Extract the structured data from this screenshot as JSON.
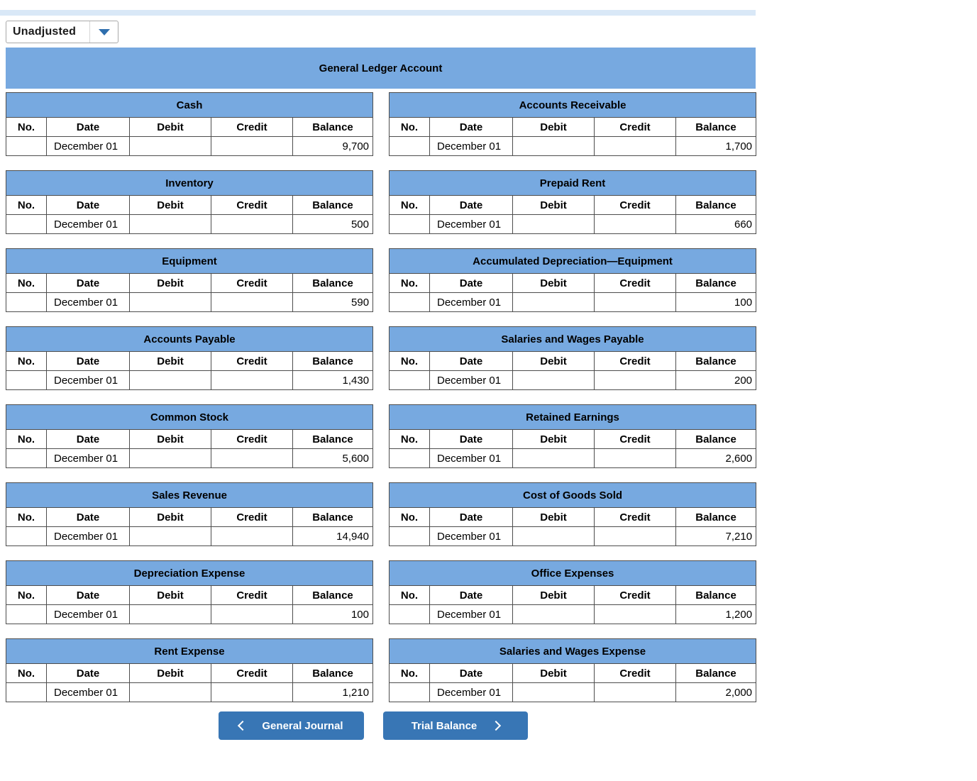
{
  "toolbar": {
    "view_selector": {
      "value": "Unadjusted"
    }
  },
  "banner": {
    "title": "General Ledger Account"
  },
  "table": {
    "columns": [
      "No.",
      "Date",
      "Debit",
      "Credit",
      "Balance"
    ],
    "column_keys": [
      "no",
      "date",
      "debit",
      "credit",
      "balance"
    ]
  },
  "accounts": {
    "left": [
      {
        "name": "Cash",
        "rows": [
          {
            "no": "",
            "date": "December 01",
            "debit": "",
            "credit": "",
            "balance": "9,700"
          }
        ]
      },
      {
        "name": "Inventory",
        "rows": [
          {
            "no": "",
            "date": "December 01",
            "debit": "",
            "credit": "",
            "balance": "500"
          }
        ]
      },
      {
        "name": "Equipment",
        "rows": [
          {
            "no": "",
            "date": "December 01",
            "debit": "",
            "credit": "",
            "balance": "590"
          }
        ]
      },
      {
        "name": "Accounts Payable",
        "rows": [
          {
            "no": "",
            "date": "December 01",
            "debit": "",
            "credit": "",
            "balance": "1,430"
          }
        ]
      },
      {
        "name": "Common Stock",
        "rows": [
          {
            "no": "",
            "date": "December 01",
            "debit": "",
            "credit": "",
            "balance": "5,600"
          }
        ]
      },
      {
        "name": "Sales Revenue",
        "rows": [
          {
            "no": "",
            "date": "December 01",
            "debit": "",
            "credit": "",
            "balance": "14,940"
          }
        ]
      },
      {
        "name": "Depreciation Expense",
        "rows": [
          {
            "no": "",
            "date": "December 01",
            "debit": "",
            "credit": "",
            "balance": "100"
          }
        ]
      },
      {
        "name": "Rent Expense",
        "rows": [
          {
            "no": "",
            "date": "December 01",
            "debit": "",
            "credit": "",
            "balance": "1,210"
          }
        ]
      }
    ],
    "right": [
      {
        "name": "Accounts Receivable",
        "rows": [
          {
            "no": "",
            "date": "December 01",
            "debit": "",
            "credit": "",
            "balance": "1,700"
          }
        ]
      },
      {
        "name": "Prepaid Rent",
        "rows": [
          {
            "no": "",
            "date": "December 01",
            "debit": "",
            "credit": "",
            "balance": "660"
          }
        ]
      },
      {
        "name": "Accumulated Depreciation—Equipment",
        "rows": [
          {
            "no": "",
            "date": "December 01",
            "debit": "",
            "credit": "",
            "balance": "100"
          }
        ]
      },
      {
        "name": "Salaries and Wages Payable",
        "rows": [
          {
            "no": "",
            "date": "December 01",
            "debit": "",
            "credit": "",
            "balance": "200"
          }
        ]
      },
      {
        "name": "Retained Earnings",
        "rows": [
          {
            "no": "",
            "date": "December 01",
            "debit": "",
            "credit": "",
            "balance": "2,600"
          }
        ]
      },
      {
        "name": "Cost of Goods Sold",
        "rows": [
          {
            "no": "",
            "date": "December 01",
            "debit": "",
            "credit": "",
            "balance": "7,210"
          }
        ]
      },
      {
        "name": "Office Expenses",
        "rows": [
          {
            "no": "",
            "date": "December 01",
            "debit": "",
            "credit": "",
            "balance": "1,200"
          }
        ]
      },
      {
        "name": "Salaries and Wages Expense",
        "rows": [
          {
            "no": "",
            "date": "December 01",
            "debit": "",
            "credit": "",
            "balance": "2,000"
          }
        ]
      }
    ]
  },
  "footer": {
    "prev_label": "General Journal",
    "next_label": "Trial Balance"
  },
  "colors": {
    "header_blue": "#77a9e0",
    "button_blue": "#3876b5",
    "top_strip_blue": "#d9e8f7",
    "border_gray": "#4d4d4d"
  }
}
